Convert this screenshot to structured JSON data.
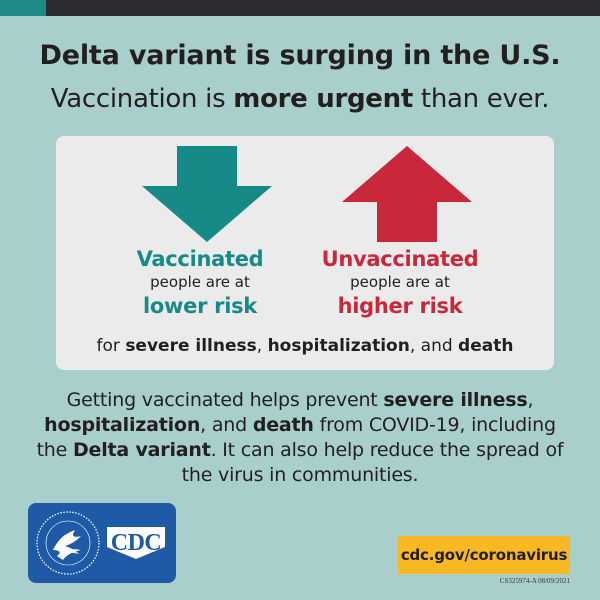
{
  "headline": "Delta variant is surging in the U.S.",
  "subheadline": {
    "before": "Vaccination is ",
    "bold": "more urgent",
    "after": " than ever."
  },
  "card": {
    "vaccinated": {
      "status": "Vaccinated",
      "note": "people are at",
      "risk": "lower risk"
    },
    "unvaccinated": {
      "status": "Unvaccinated",
      "note": "people are at",
      "risk": "higher risk"
    },
    "footnote": {
      "pre": "for ",
      "b1": "severe illness",
      "mid1": ", ",
      "b2": "hospitalization",
      "mid2": ", and ",
      "b3": "death"
    }
  },
  "body": {
    "p1": "Getting vaccinated helps prevent ",
    "b1": "severe illness",
    "p2": ", ",
    "b2": "hospitalization",
    "p3": ", and ",
    "b3": "death",
    "p4": " from COVID-19, including the ",
    "b4": "Delta variant",
    "p5": ". It can also help reduce the spread of the virus in communities."
  },
  "logos": {
    "cdc": "CDC"
  },
  "url": "cdc.gov/coronavirus",
  "code": "CS325974-A 08/09/2021",
  "colors": {
    "teal": "#168a87",
    "red": "#c8283a",
    "background": "#a9cfcc",
    "yellow": "#f7b824",
    "blue": "#1f5aa6"
  },
  "icons": {
    "left": "arrow-down-icon",
    "right": "arrow-up-icon",
    "seal": "hhs-eagle-seal-icon"
  }
}
